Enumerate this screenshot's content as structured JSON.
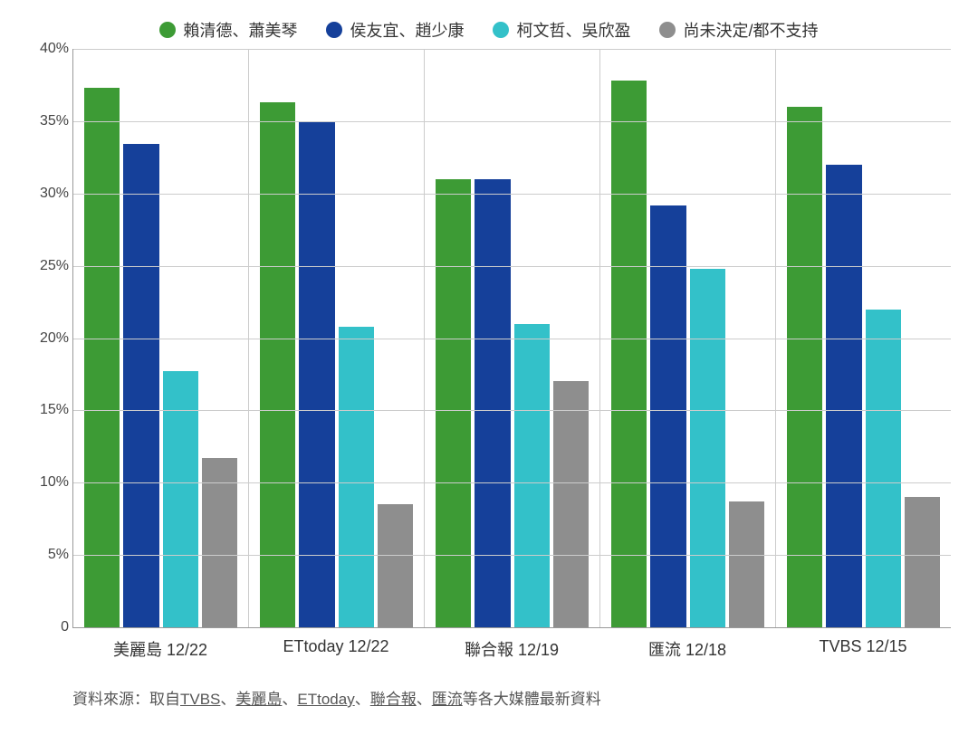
{
  "chart": {
    "type": "bar",
    "background_color": "#ffffff",
    "grid_color": "#cccccc",
    "axis_color": "#999999",
    "ylim": [
      0,
      40
    ],
    "ytick_step": 5,
    "ytick_suffix": "%",
    "yticks": [
      "0",
      "5%",
      "10%",
      "15%",
      "20%",
      "25%",
      "30%",
      "35%",
      "40%"
    ],
    "label_fontsize": 16,
    "xlabel_fontsize": 18,
    "legend_fontsize": 18,
    "series": [
      {
        "label": "賴清德、蕭美琴",
        "color": "#3d9b35"
      },
      {
        "label": "侯友宜、趙少康",
        "color": "#15409a"
      },
      {
        "label": "柯文哲、吳欣盈",
        "color": "#33c1c9"
      },
      {
        "label": "尚未決定/都不支持",
        "color": "#8e8e8e"
      }
    ],
    "categories": [
      {
        "label": "美麗島 12/22",
        "values": [
          37.3,
          33.4,
          17.7,
          11.7
        ]
      },
      {
        "label": "ETtoday 12/22",
        "values": [
          36.3,
          35.0,
          20.8,
          8.5
        ]
      },
      {
        "label": "聯合報 12/19",
        "values": [
          31.0,
          31.0,
          21.0,
          17.0
        ]
      },
      {
        "label": "匯流 12/18",
        "values": [
          37.8,
          29.2,
          24.8,
          8.7
        ]
      },
      {
        "label": "TVBS 12/15",
        "values": [
          36.0,
          32.0,
          22.0,
          9.0
        ]
      }
    ]
  },
  "source": {
    "prefix": "資料來源：取自",
    "links": [
      "TVBS",
      "美麗島",
      "ETtoday",
      "聯合報",
      "匯流"
    ],
    "suffix": "等各大媒體最新資料",
    "sep": "、"
  }
}
